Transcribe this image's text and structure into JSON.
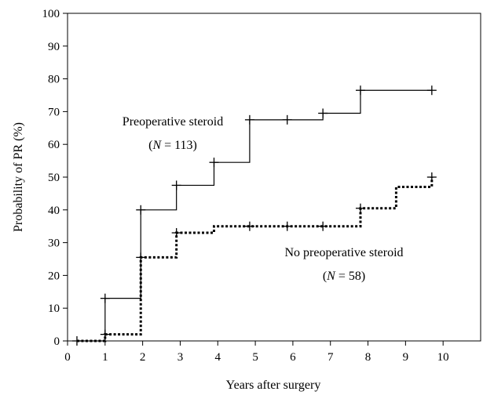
{
  "chart_data": {
    "type": "line",
    "xlabel": "Years after surgery",
    "ylabel": "Probability of PR (%)",
    "xlim": [
      0,
      11
    ],
    "ylim": [
      0,
      100
    ],
    "xticks": [
      0,
      1,
      2,
      3,
      4,
      5,
      6,
      7,
      8,
      9,
      10
    ],
    "yticks": [
      0,
      10,
      20,
      30,
      40,
      50,
      60,
      70,
      80,
      90,
      100
    ],
    "grid": false,
    "series": [
      {
        "name": "Preoperative steroid",
        "n_label": "N",
        "n_value": "= 113)",
        "style": "solid",
        "color": "#000000",
        "steps": [
          [
            0.25,
            0
          ],
          [
            1.0,
            13
          ],
          [
            1.95,
            40
          ],
          [
            2.9,
            47.5
          ],
          [
            3.9,
            54.5
          ],
          [
            4.85,
            67.5
          ],
          [
            6.8,
            69.5
          ],
          [
            7.8,
            76.5
          ],
          [
            9.7,
            76.5
          ]
        ],
        "censor_marks": [
          [
            0.25,
            0
          ],
          [
            1.0,
            13
          ],
          [
            1.95,
            40
          ],
          [
            2.9,
            47.5
          ],
          [
            3.9,
            54.5
          ],
          [
            4.85,
            67.5
          ],
          [
            5.85,
            67.5
          ],
          [
            6.8,
            69.5
          ],
          [
            7.8,
            76.5
          ],
          [
            9.7,
            76.5
          ]
        ]
      },
      {
        "name": "No preoperative steroid",
        "n_label": "N",
        "n_value": "= 58)",
        "style": "dotted",
        "color": "#000000",
        "steps": [
          [
            0.25,
            0
          ],
          [
            1.0,
            2
          ],
          [
            1.95,
            25.5
          ],
          [
            2.9,
            33
          ],
          [
            3.9,
            35
          ],
          [
            7.8,
            40.5
          ],
          [
            8.75,
            47
          ],
          [
            9.7,
            50
          ]
        ],
        "censor_marks": [
          [
            1.0,
            2
          ],
          [
            1.95,
            25.5
          ],
          [
            2.9,
            33
          ],
          [
            4.85,
            35
          ],
          [
            5.85,
            35
          ],
          [
            6.8,
            35
          ],
          [
            7.8,
            40.5
          ],
          [
            9.7,
            50
          ]
        ]
      }
    ]
  }
}
